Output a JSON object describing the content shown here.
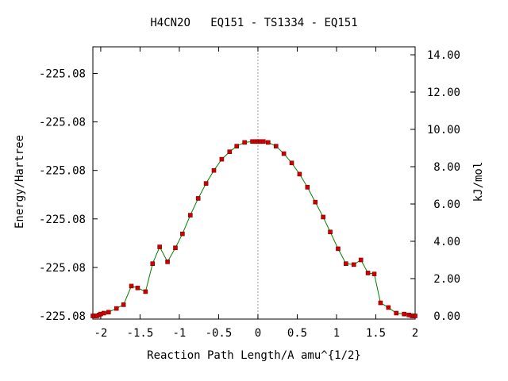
{
  "chart_data": {
    "type": "line",
    "title": "H4CN2O   EQ151 - TS1334 - EQ151",
    "xlabel": "Reaction Path Length/A amu^{1/2}",
    "ylabel": "Energy/Hartree",
    "y2label": "kJ/mol",
    "xlim": [
      -2.1,
      2.0
    ],
    "ylim": [
      0,
      14.5
    ],
    "x_ticks": [
      {
        "value": -2,
        "label": "-2"
      },
      {
        "value": -1.5,
        "label": "-1.5"
      },
      {
        "value": -1,
        "label": "-1"
      },
      {
        "value": -0.5,
        "label": "-0.5"
      },
      {
        "value": 0,
        "label": "0"
      },
      {
        "value": 0.5,
        "label": "0.5"
      },
      {
        "value": 1,
        "label": "1"
      },
      {
        "value": 1.5,
        "label": "1.5"
      },
      {
        "value": 2,
        "label": "2"
      }
    ],
    "y_left_ticks": [
      {
        "value": 0.0,
        "label": "-225.08"
      },
      {
        "value": 2.6,
        "label": "-225.08"
      },
      {
        "value": 5.2,
        "label": "-225.08"
      },
      {
        "value": 7.8,
        "label": "-225.08"
      },
      {
        "value": 10.4,
        "label": "-225.08"
      },
      {
        "value": 13.0,
        "label": "-225.08"
      }
    ],
    "y_right_ticks": [
      {
        "value": 0,
        "label": "0.00"
      },
      {
        "value": 2,
        "label": "2.00"
      },
      {
        "value": 4,
        "label": "4.00"
      },
      {
        "value": 6,
        "label": "6.00"
      },
      {
        "value": 8,
        "label": "8.00"
      },
      {
        "value": 10,
        "label": "10.00"
      },
      {
        "value": 12,
        "label": "12.00"
      },
      {
        "value": 14,
        "label": "14.00"
      }
    ],
    "reference_line_x": 0,
    "grid": false,
    "colors": {
      "line": "#008000",
      "marker": "#cc0000",
      "marker_edge": "#800000",
      "reference": "#999999"
    },
    "series": [
      {
        "x": [
          -2.1,
          -2.08,
          -2.05,
          -2.02,
          -2.0,
          -1.96,
          -1.9,
          -1.8,
          -1.71,
          -1.61,
          -1.53,
          -1.43,
          -1.34,
          -1.25,
          -1.15,
          -1.05,
          -0.96,
          -0.86,
          -0.76,
          -0.66,
          -0.56,
          -0.46,
          -0.36,
          -0.27,
          -0.17,
          -0.07,
          -0.03,
          0.0,
          0.03,
          0.07,
          0.13,
          0.23,
          0.33,
          0.43,
          0.53,
          0.63,
          0.73,
          0.83,
          0.92,
          1.02,
          1.12,
          1.22,
          1.31,
          1.4,
          1.48,
          1.56,
          1.66,
          1.76,
          1.86,
          1.92,
          1.96,
          1.98,
          2.0
        ],
        "y": [
          0.0,
          0.0,
          0.0,
          0.05,
          0.1,
          0.15,
          0.2,
          0.4,
          0.6,
          1.6,
          1.5,
          1.3,
          2.8,
          3.7,
          2.9,
          3.65,
          4.4,
          5.4,
          6.3,
          7.1,
          7.8,
          8.4,
          8.8,
          9.1,
          9.3,
          9.35,
          9.35,
          9.35,
          9.35,
          9.35,
          9.3,
          9.1,
          8.7,
          8.2,
          7.6,
          6.9,
          6.1,
          5.3,
          4.5,
          3.6,
          2.8,
          2.75,
          3.0,
          2.3,
          2.25,
          0.7,
          0.45,
          0.15,
          0.1,
          0.05,
          0.0,
          0.0,
          0.0
        ]
      }
    ]
  }
}
